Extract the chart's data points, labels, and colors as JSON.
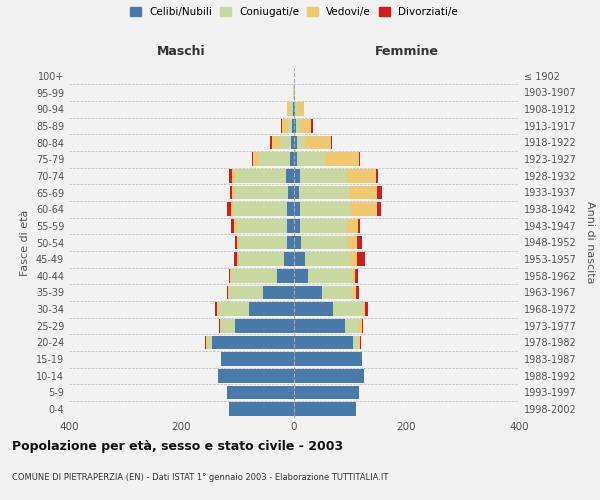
{
  "age_groups": [
    "0-4",
    "5-9",
    "10-14",
    "15-19",
    "20-24",
    "25-29",
    "30-34",
    "35-39",
    "40-44",
    "45-49",
    "50-54",
    "55-59",
    "60-64",
    "65-69",
    "70-74",
    "75-79",
    "80-84",
    "85-89",
    "90-94",
    "95-99",
    "100+"
  ],
  "birth_years": [
    "1998-2002",
    "1993-1997",
    "1988-1992",
    "1983-1987",
    "1978-1982",
    "1973-1977",
    "1968-1972",
    "1963-1967",
    "1958-1962",
    "1953-1957",
    "1948-1952",
    "1943-1947",
    "1938-1942",
    "1933-1937",
    "1928-1932",
    "1923-1927",
    "1918-1922",
    "1913-1917",
    "1908-1912",
    "1903-1907",
    "≤ 1902"
  ],
  "maschi": {
    "celibi": [
      115,
      120,
      135,
      130,
      145,
      105,
      80,
      55,
      30,
      18,
      12,
      12,
      12,
      10,
      15,
      8,
      5,
      3,
      2,
      0,
      0
    ],
    "coniugati": [
      0,
      0,
      0,
      0,
      10,
      25,
      55,
      60,
      80,
      80,
      85,
      90,
      95,
      95,
      90,
      55,
      20,
      8,
      5,
      1,
      0
    ],
    "vedovi": [
      0,
      0,
      0,
      0,
      2,
      2,
      2,
      2,
      3,
      3,
      5,
      5,
      5,
      5,
      5,
      10,
      15,
      10,
      5,
      0,
      0
    ],
    "divorziati": [
      0,
      0,
      0,
      0,
      2,
      2,
      3,
      2,
      3,
      5,
      3,
      5,
      8,
      3,
      5,
      2,
      2,
      2,
      0,
      0,
      0
    ]
  },
  "femmine": {
    "nubili": [
      110,
      115,
      125,
      120,
      105,
      90,
      70,
      50,
      25,
      20,
      12,
      10,
      10,
      8,
      10,
      5,
      5,
      3,
      2,
      0,
      0
    ],
    "coniugate": [
      0,
      0,
      0,
      0,
      10,
      25,
      52,
      55,
      78,
      80,
      82,
      85,
      92,
      90,
      85,
      50,
      15,
      8,
      5,
      0,
      0
    ],
    "vedove": [
      0,
      0,
      0,
      0,
      2,
      5,
      5,
      5,
      5,
      12,
      18,
      18,
      45,
      50,
      50,
      60,
      45,
      20,
      10,
      2,
      0
    ],
    "divorziate": [
      0,
      0,
      0,
      0,
      2,
      2,
      5,
      5,
      5,
      15,
      8,
      5,
      8,
      8,
      5,
      2,
      2,
      2,
      0,
      0,
      0
    ]
  },
  "colors": {
    "celibi_nubili": "#4a7aaa",
    "coniugati": "#c8d8a0",
    "vedovi": "#f0c870",
    "divorziati": "#cc2020"
  },
  "xlim": 400,
  "title": "Popolazione per età, sesso e stato civile - 2003",
  "subtitle": "COMUNE DI PIETRAPERZIA (EN) - Dati ISTAT 1° gennaio 2003 - Elaborazione TUTTITALIA.IT",
  "ylabel_left": "Fasce di età",
  "ylabel_right": "Anni di nascita",
  "xlabel_maschi": "Maschi",
  "xlabel_femmine": "Femmine",
  "bg_color": "#f2f2f2",
  "bar_height": 0.82
}
